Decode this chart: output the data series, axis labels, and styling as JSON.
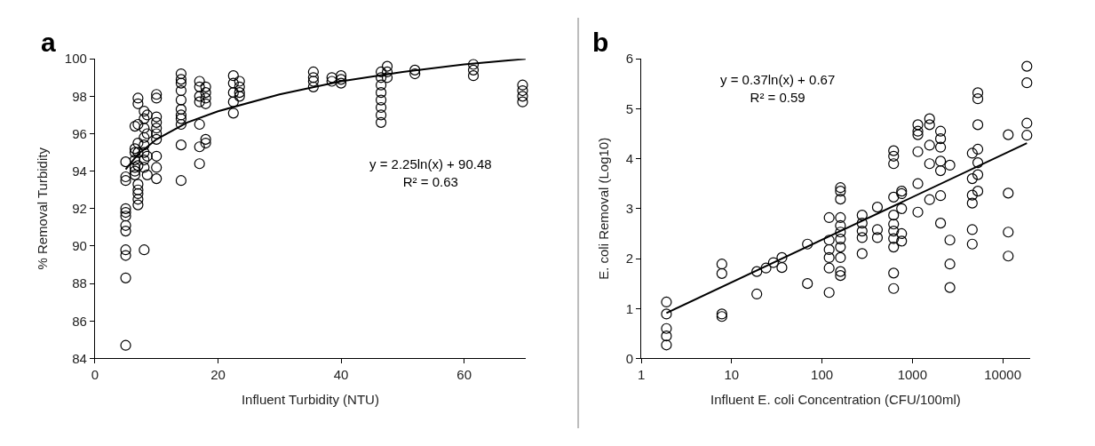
{
  "chart_data": [
    {
      "type": "scatter",
      "xlabel": "Influent Turbidity (NTU)",
      "ylabel": "% Removal Turbidity",
      "annotations": [
        "a",
        "y = 2.25ln(x) + 90.48\nR² = 0.63"
      ],
      "xlim": [
        0,
        70
      ],
      "xticks": [
        0,
        20,
        40,
        60
      ],
      "ylim": [
        84,
        100
      ],
      "yticks": [
        84,
        86,
        88,
        90,
        92,
        94,
        96,
        98,
        100
      ],
      "marker": "circle",
      "series": [
        {
          "color": "#000000",
          "x": [
            5,
            5,
            5,
            5,
            5,
            5,
            5,
            5,
            5,
            5,
            5,
            5,
            6.5,
            6.5,
            6.5,
            6.5,
            6.5,
            6.5,
            6.5,
            7,
            7,
            7,
            7,
            7,
            7,
            7,
            7,
            7,
            7,
            7,
            8,
            8,
            8,
            8,
            8,
            8,
            8,
            8,
            8,
            8.5,
            8.5,
            8.5,
            8.5,
            10,
            10,
            10,
            10,
            10,
            10,
            10,
            10,
            10,
            10,
            14,
            14,
            14,
            14,
            14,
            14,
            14,
            14,
            14,
            14,
            14,
            17,
            17,
            17,
            17,
            17,
            17,
            17,
            18,
            18,
            18,
            18,
            18,
            18,
            22.5,
            22.5,
            22.5,
            22.5,
            22.5,
            23.5,
            23.5,
            23.5,
            23.5,
            35.5,
            35.5,
            35.5,
            35.5,
            38.5,
            38.5,
            40,
            40,
            40,
            46.5,
            46.5,
            46.5,
            46.5,
            46.5,
            46.5,
            46.5,
            46.5,
            47.5,
            47.5,
            47.5,
            52,
            52,
            61.5,
            61.5,
            61.5,
            69.5,
            69.5,
            69.5,
            69.5
          ],
          "values": [
            94.5,
            93.7,
            93.5,
            92.0,
            91.8,
            91.6,
            91.1,
            90.8,
            89.8,
            89.5,
            88.3,
            84.7,
            96.4,
            95.2,
            95.0,
            94.6,
            94.2,
            94.0,
            93.8,
            97.9,
            97.6,
            96.5,
            95.5,
            95.0,
            94.3,
            93.3,
            93.0,
            92.8,
            92.5,
            92.2,
            97.2,
            96.8,
            96.3,
            95.8,
            95.4,
            95.0,
            94.6,
            94.2,
            89.8,
            97.0,
            96.0,
            94.8,
            93.8,
            98.1,
            97.9,
            96.9,
            96.6,
            96.3,
            96.0,
            95.7,
            94.8,
            94.2,
            93.6,
            99.2,
            98.9,
            98.7,
            98.3,
            97.8,
            97.3,
            97.0,
            96.8,
            96.5,
            95.4,
            93.5,
            98.8,
            98.5,
            98.0,
            97.7,
            96.5,
            95.3,
            94.4,
            98.5,
            98.2,
            97.9,
            97.6,
            95.7,
            95.5,
            99.1,
            98.7,
            98.2,
            97.7,
            97.1,
            98.8,
            98.5,
            98.2,
            98.0,
            99.3,
            99.0,
            98.8,
            98.5,
            99.0,
            98.8,
            99.1,
            98.9,
            98.7,
            99.3,
            99.0,
            98.6,
            98.2,
            97.8,
            97.4,
            97.0,
            96.6,
            99.6,
            99.3,
            99.0,
            99.4,
            99.2,
            99.7,
            99.4,
            99.1,
            98.6,
            98.3,
            98.0,
            97.7
          ]
        },
        {
          "type": "line",
          "color": "#000000",
          "marker": "none",
          "line_style": "solid",
          "x": [
            5,
            7,
            10,
            15,
            20,
            30,
            40,
            50,
            60,
            70
          ],
          "values": [
            94.1,
            94.9,
            95.7,
            96.6,
            97.2,
            98.1,
            98.8,
            99.3,
            99.7,
            100.0
          ]
        }
      ]
    },
    {
      "type": "scatter",
      "xlabel": "Influent E. coli Concentration (CFU/100ml)",
      "ylabel": "E. coli Removal (Log10)",
      "annotations": [
        "b",
        "y = 0.37ln(x) + 0.67\nR² = 0.59"
      ],
      "log": "x",
      "xlim": [
        1,
        20000
      ],
      "xticks": [
        1,
        10,
        100,
        1000,
        10000
      ],
      "ylim": [
        0,
        6
      ],
      "yticks": [
        0,
        1,
        2,
        3,
        4,
        5,
        6
      ],
      "marker": "circle",
      "series": [
        {
          "color": "#000000",
          "x": [
            1.9,
            1.9,
            1.9,
            1.9,
            1.9,
            7.8,
            7.8,
            7.8,
            7.8,
            19,
            19,
            24,
            29,
            36,
            36,
            69,
            69,
            120,
            120,
            120,
            120,
            120,
            120,
            160,
            160,
            160,
            160,
            160,
            160,
            160,
            160,
            160,
            160,
            160,
            278,
            278,
            278,
            278,
            278,
            410,
            410,
            410,
            620,
            620,
            620,
            620,
            620,
            620,
            620,
            620,
            620,
            620,
            620,
            760,
            760,
            760,
            760,
            760,
            1150,
            1150,
            1150,
            1150,
            1150,
            1150,
            1550,
            1550,
            1550,
            1550,
            1550,
            2050,
            2050,
            2050,
            2050,
            2050,
            2050,
            2050,
            2600,
            2600,
            2600,
            2600,
            4600,
            4600,
            4600,
            4600,
            4600,
            4600,
            5300,
            5300,
            5300,
            5300,
            5300,
            5300,
            5300,
            11500,
            11500,
            11500,
            11500,
            18500,
            18500,
            18500,
            18500
          ],
          "values": [
            1.13,
            0.89,
            0.6,
            0.45,
            0.27,
            1.89,
            1.7,
            0.89,
            0.84,
            1.74,
            1.29,
            1.81,
            1.92,
            2.02,
            1.82,
            2.29,
            1.5,
            2.82,
            2.37,
            2.18,
            2.02,
            1.81,
            1.32,
            3.42,
            3.19,
            2.82,
            2.66,
            2.53,
            2.39,
            2.23,
            2.02,
            1.74,
            1.66,
            3.35,
            2.87,
            2.71,
            2.55,
            2.42,
            2.1,
            3.03,
            2.58,
            2.42,
            4.16,
            4.05,
            3.9,
            3.23,
            2.87,
            2.69,
            2.55,
            2.4,
            2.23,
            1.71,
            1.4,
            3.35,
            3.3,
            3.0,
            2.5,
            2.35,
            4.68,
            4.55,
            4.48,
            4.14,
            3.5,
            2.93,
            4.8,
            4.68,
            4.27,
            3.9,
            3.18,
            4.55,
            4.4,
            4.23,
            3.95,
            3.76,
            3.26,
            2.71,
            3.87,
            2.37,
            1.89,
            1.42,
            4.11,
            3.6,
            3.27,
            3.11,
            2.58,
            2.29,
            5.32,
            5.2,
            4.68,
            4.19,
            3.92,
            3.68,
            3.35,
            4.48,
            3.31,
            2.53,
            2.05,
            5.85,
            5.52,
            4.71,
            4.47
          ]
        },
        {
          "type": "line",
          "color": "#000000",
          "marker": "none",
          "line_style": "solid",
          "x": [
            1.9,
            18500
          ],
          "values": [
            0.91,
            4.31
          ]
        }
      ]
    }
  ]
}
